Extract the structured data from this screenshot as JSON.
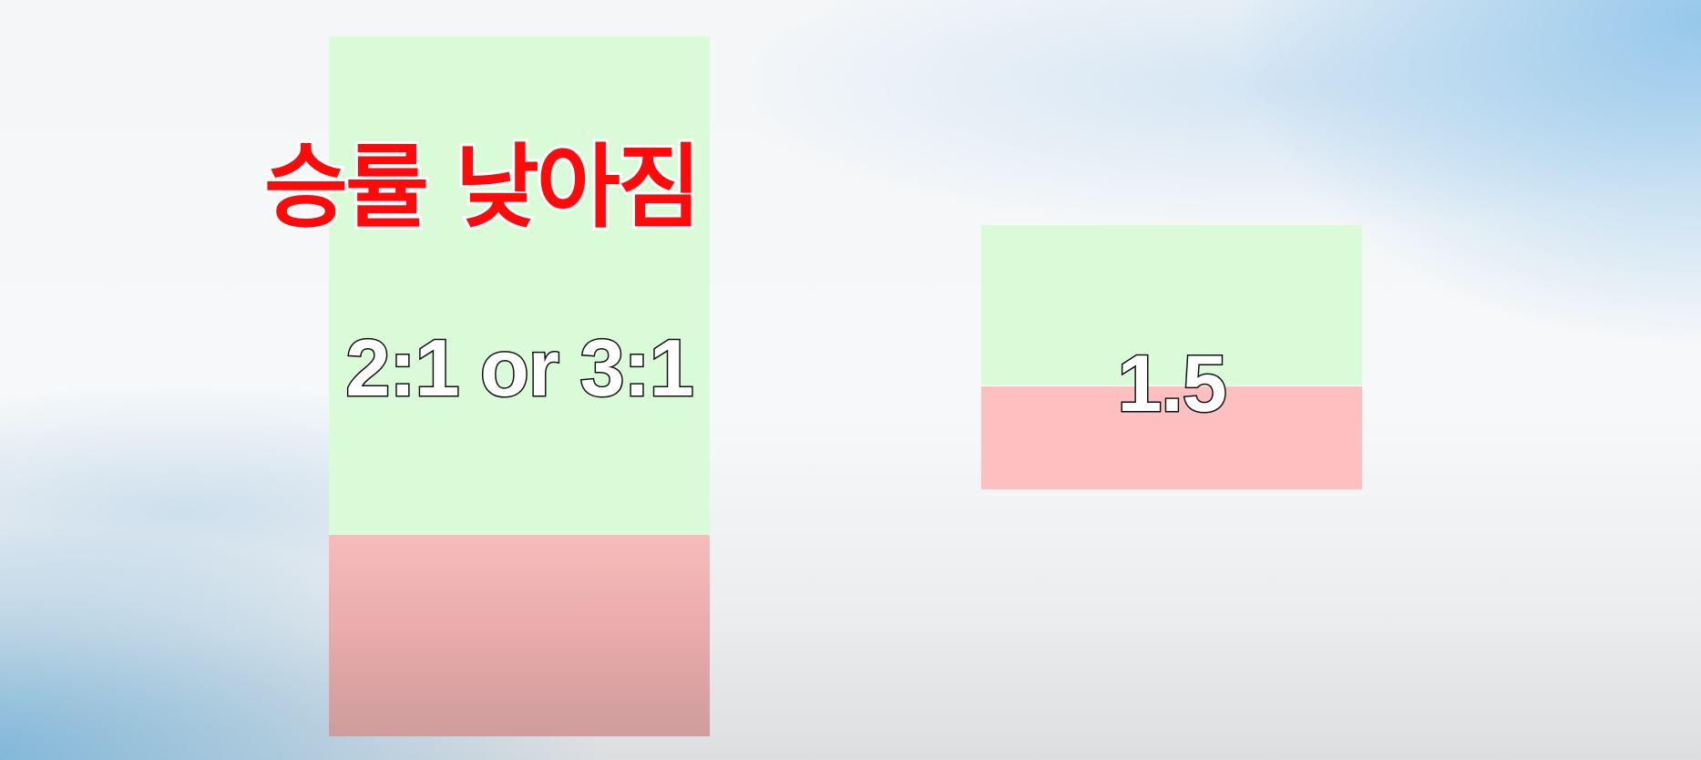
{
  "headline": {
    "text": "승률 낮아짐",
    "color": "#ff0a0a"
  },
  "left_setup": {
    "ratio_label": "2:1 or 3:1",
    "reward_color": "#d9fbd8",
    "risk_color": "#f7bcbb"
  },
  "right_setup": {
    "ratio_label": "1.5",
    "reward_color": "#d9fbd8",
    "risk_color": "#fdbfc0"
  }
}
